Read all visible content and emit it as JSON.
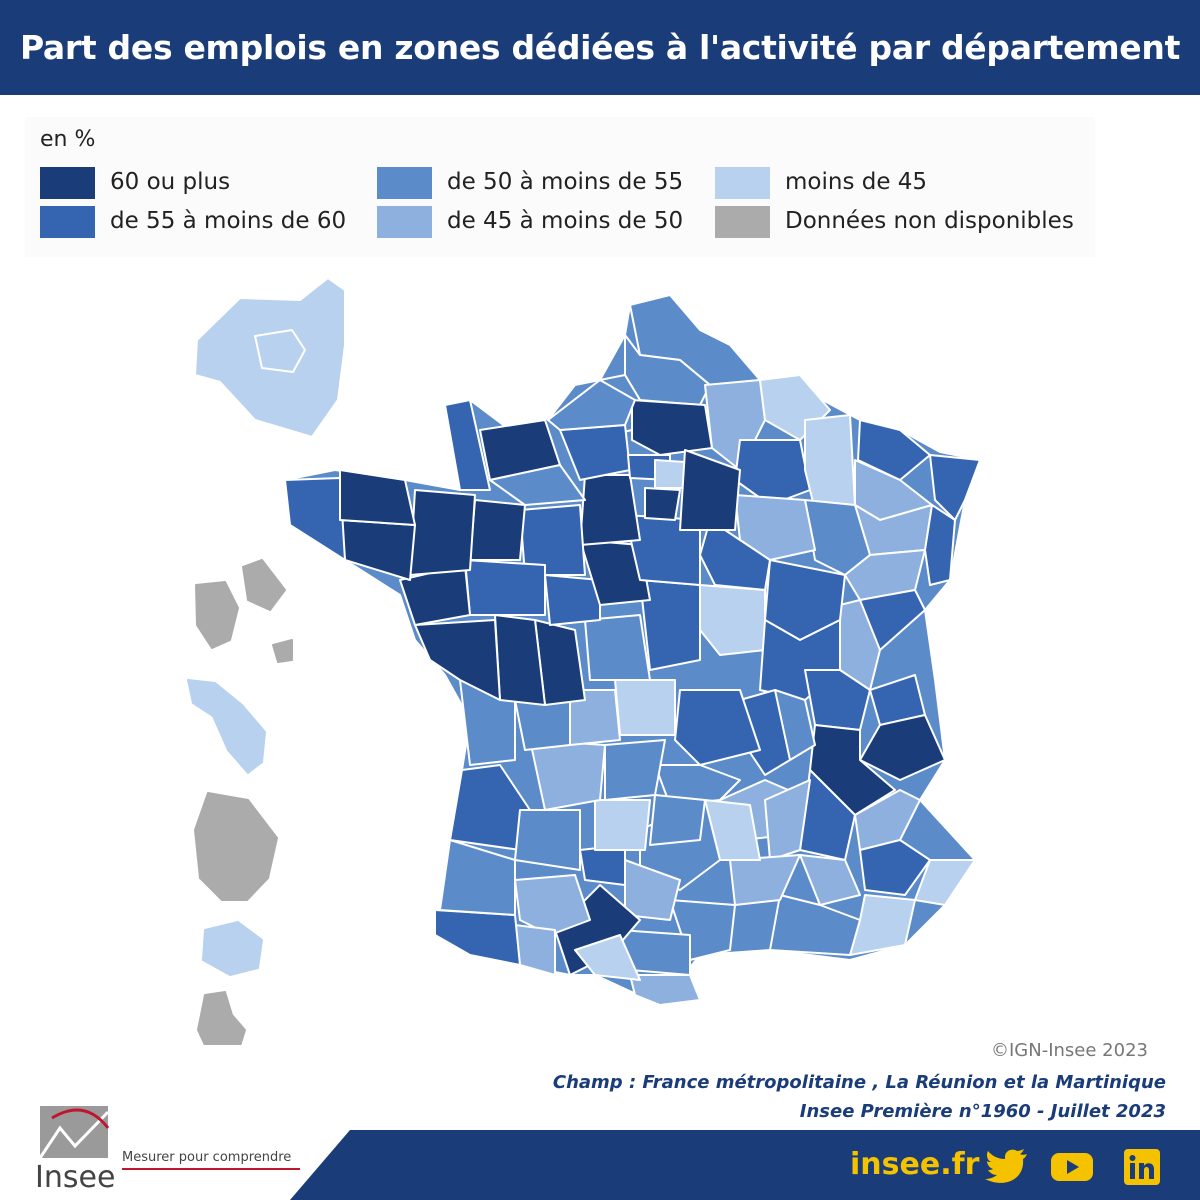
{
  "header": {
    "title": "Part des emplois en zones dédiées à l'activité par département"
  },
  "legend": {
    "unit": "en %",
    "items": [
      {
        "label": "60 ou plus",
        "color": "#1a3d79"
      },
      {
        "label": "de 55 à moins de 60",
        "color": "#3565b0"
      },
      {
        "label": "de 50 à moins de 55",
        "color": "#5b8bc9"
      },
      {
        "label": "de 45 à moins de 50",
        "color": "#8eb0de"
      },
      {
        "label": "moins de 45",
        "color": "#b8d1ee"
      },
      {
        "label": "Données non disponibles",
        "color": "#ababab"
      }
    ]
  },
  "map": {
    "copyright": "©IGN-Insee 2023",
    "overseas": [
      "Guadeloupe",
      "Martinique",
      "Guyane",
      "La Réunion",
      "Mayotte"
    ]
  },
  "notes": {
    "champ": "Champ : France métropolitaine , La Réunion et la Martinique",
    "source": "Insee Première n°1960 - Juillet 2023"
  },
  "footer": {
    "brand": "Insee",
    "tagline": "Mesurer pour comprendre",
    "site": "insee.fr",
    "social_icons": [
      "twitter-icon",
      "youtube-icon",
      "linkedin-icon"
    ],
    "colors": {
      "band": "#1a3d79",
      "accent": "#f5c200"
    }
  }
}
